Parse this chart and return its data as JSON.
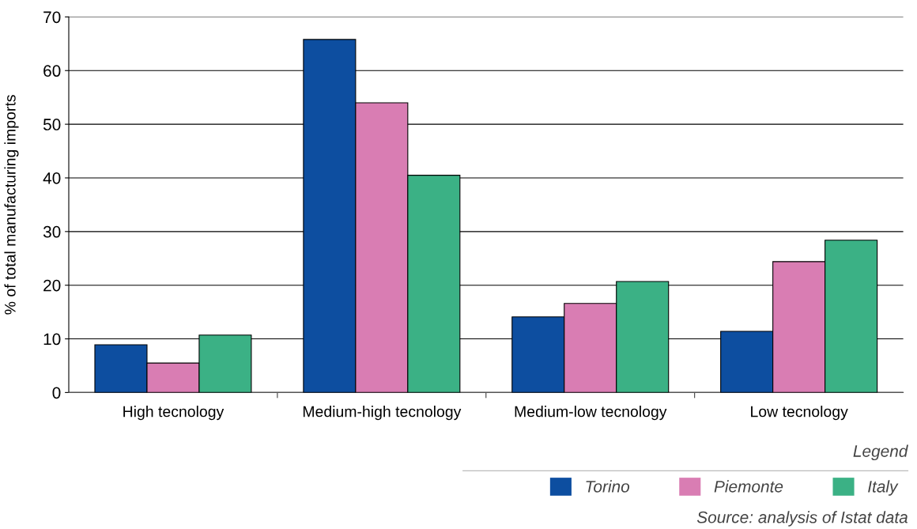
{
  "chart_data": {
    "type": "bar",
    "ylabel": "% of total manufacturing imports",
    "categories": [
      "High tecnology",
      "Medium-high tecnology",
      "Medium-low tecnology",
      "Low tecnology"
    ],
    "series": [
      {
        "name": "Torino",
        "color": "#0d4ea0",
        "values": [
          8.9,
          65.8,
          14.1,
          11.4
        ]
      },
      {
        "name": "Piemonte",
        "color": "#d97db3",
        "values": [
          5.5,
          54.0,
          16.6,
          24.4
        ]
      },
      {
        "name": "Italy",
        "color": "#3bb185",
        "values": [
          10.7,
          40.5,
          20.7,
          28.4
        ]
      }
    ],
    "ylim": [
      0,
      70
    ],
    "yticks": [
      0,
      10,
      20,
      30,
      40,
      50,
      60,
      70
    ],
    "grid": "y",
    "legend": "bottom right",
    "legend_title": "Legend",
    "annotations": [
      "Source: analysis of Istat data"
    ]
  }
}
